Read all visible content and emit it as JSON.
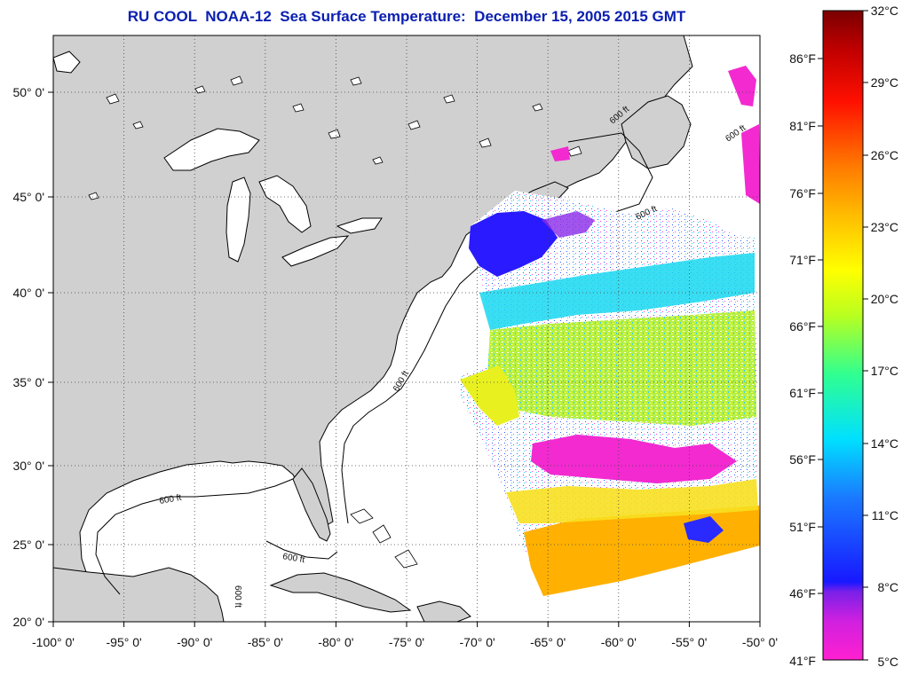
{
  "title": "RU COOL  NOAA-12  Sea Surface Temperature:  December 15, 2005 2015 GMT",
  "map": {
    "longitude_ticks": [
      "-100° 0'",
      "-95° 0'",
      "-90° 0'",
      "-85° 0'",
      "-80° 0'",
      "-75° 0'",
      "-70° 0'",
      "-65° 0'",
      "-60° 0'",
      "-55° 0'",
      "-50° 0'"
    ],
    "latitude_ticks": [
      "50° 0'",
      "45° 0'",
      "40° 0'",
      "35° 0'",
      "30° 0'",
      "25° 0'",
      "20° 0'"
    ],
    "land_color": "#d0d0d0",
    "ocean_color": "#ffffff",
    "grid": "dotted",
    "contour_labels": [
      "600 ft",
      "600 ft",
      "600 ft",
      "600 ft",
      "600 ft",
      "600 ft",
      "600 ft"
    ]
  },
  "colorbar": {
    "fahrenheit_labels": [
      "86°F",
      "81°F",
      "76°F",
      "71°F",
      "66°F",
      "61°F",
      "56°F",
      "51°F",
      "46°F",
      "41°F"
    ],
    "celsius_labels": [
      "32°C",
      "29°C",
      "26°C",
      "23°C",
      "20°C",
      "17°C",
      "14°C",
      "11°C",
      "8°C",
      "5°C"
    ],
    "range_celsius": [
      5,
      32
    ],
    "stops": [
      "#ff20d0",
      "#9a22e0",
      "#1818ff",
      "#1880ff",
      "#00e8ff",
      "#20ff90",
      "#c8ff20",
      "#ffff00",
      "#ffb000",
      "#ff6000",
      "#ff0000",
      "#b00000",
      "#7a0000"
    ]
  }
}
